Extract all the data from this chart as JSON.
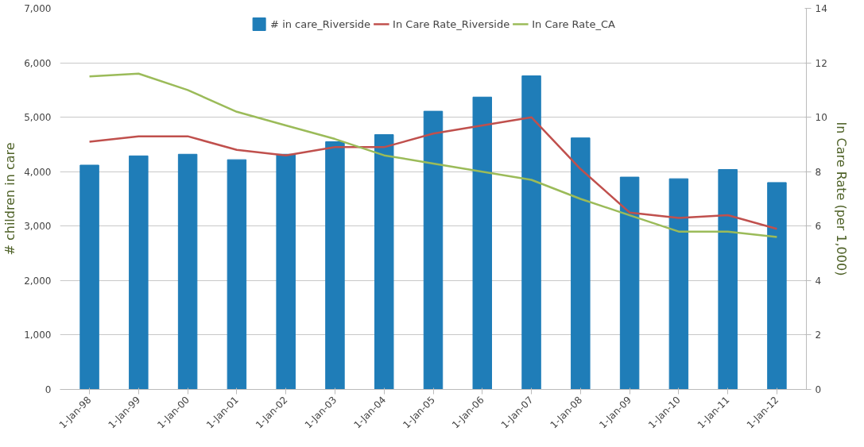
{
  "chart_data": {
    "type": "bar",
    "categories": [
      "1-Jan-98",
      "1-Jan-99",
      "1-Jan-00",
      "1-Jan-01",
      "1-Jan-02",
      "1-Jan-03",
      "1-Jan-04",
      "1-Jan-05",
      "1-Jan-06",
      "1-Jan-07",
      "1-Jan-08",
      "1-Jan-09",
      "1-Jan-10",
      "1-Jan-11",
      "1-Jan-12"
    ],
    "series": [
      {
        "name": "# in care_Riverside",
        "color": "#1f7db8",
        "values": [
          4120,
          4290,
          4320,
          4220,
          4320,
          4550,
          4680,
          5110,
          5370,
          5760,
          4620,
          3900,
          3870,
          4040,
          3800
        ]
      },
      {
        "name": "In Care Rate_Riverside",
        "type": "line",
        "axis": "y2",
        "color": "#c0504d",
        "values": [
          9.1,
          9.3,
          9.3,
          8.8,
          8.6,
          8.9,
          8.9,
          9.4,
          9.7,
          10.0,
          8.1,
          6.5,
          6.3,
          6.4,
          5.9
        ]
      },
      {
        "name": "In Care Rate_CA",
        "type": "line",
        "axis": "y2",
        "color": "#9bbb59",
        "values": [
          11.5,
          11.6,
          11.0,
          10.2,
          9.7,
          9.2,
          8.6,
          8.3,
          8.0,
          7.7,
          7.0,
          6.4,
          5.8,
          5.8,
          5.6
        ]
      }
    ],
    "ylabel": "# children in care",
    "y2label": "In Care Rate (per 1,000)",
    "ylim": [
      0,
      7000
    ],
    "yticks": [
      0,
      {
        "value": 1000,
        "label": "1,000"
      },
      {
        "value": 2000,
        "label": "2,000"
      },
      {
        "value": 3000,
        "label": "3,000"
      },
      {
        "value": 4000,
        "label": "4,000"
      },
      {
        "value": 5000,
        "label": "5,000"
      },
      {
        "value": 6000,
        "label": "6,000"
      },
      {
        "value": 7000,
        "label": "7,000"
      }
    ],
    "y2lim": [
      0,
      14
    ],
    "y2ticks": [
      0,
      2,
      4,
      6,
      8,
      10,
      12,
      14
    ],
    "grid": "y",
    "legend": "top",
    "line_style": "solid",
    "marker": "none"
  }
}
